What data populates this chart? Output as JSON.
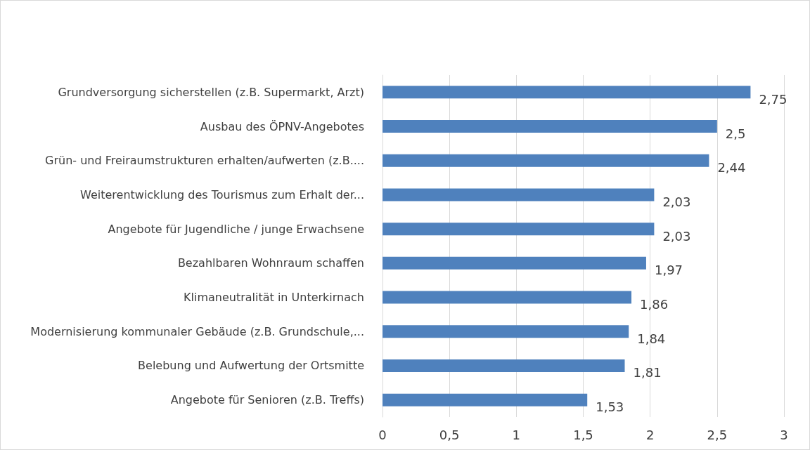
{
  "chart_data": {
    "type": "bar",
    "orientation": "horizontal",
    "categories": [
      "Grundversorgung sicherstellen (z.B. Supermarkt, Arzt)",
      "Ausbau des ÖPNV-Angebotes",
      "Grün- und Freiraumstrukturen erhalten/aufwerten (z.B....",
      "Weiterentwicklung des Tourismus zum Erhalt der...",
      "Angebote für Jugendliche / junge Erwachsene",
      "Bezahlbaren Wohnraum schaffen",
      "Klimaneutralität in Unterkirnach",
      "Modernisierung kommunaler Gebäude (z.B. Grundschule,...",
      "Belebung und Aufwertung der Ortsmitte",
      "Angebote für Senioren (z.B. Treffs)"
    ],
    "values": [
      2.75,
      2.5,
      2.44,
      2.03,
      2.03,
      1.97,
      1.86,
      1.84,
      1.81,
      1.53
    ],
    "value_labels": [
      "2,75",
      "2,5",
      "2,44",
      "2,03",
      "2,03",
      "1,97",
      "1,86",
      "1,84",
      "1,81",
      "1,53"
    ],
    "color": "#4f81bd",
    "xlim": [
      0,
      3
    ],
    "xticks": [
      0,
      {
        "value": 0.5,
        "label": "0,5"
      },
      1,
      {
        "value": 1.5,
        "label": "1,5"
      },
      2,
      {
        "value": 2.5,
        "label": "2,5"
      },
      3
    ],
    "grid": "x"
  }
}
